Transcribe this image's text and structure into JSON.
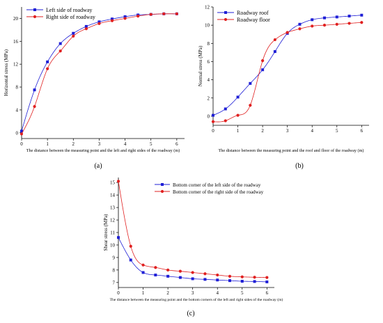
{
  "chart_data": [
    {
      "type": "line",
      "panel_label": "(a)",
      "xlabel": "The distance between the measuring point and the left and right sides of the roadway (m)",
      "ylabel": "Horizontal stress (MPa)",
      "xlim": [
        0,
        6.3
      ],
      "ylim": [
        -1,
        22
      ],
      "xticks": [
        0,
        1,
        2,
        3,
        4,
        5,
        6
      ],
      "yticks": [
        0,
        4,
        8,
        12,
        16,
        20
      ],
      "legend_position": "top-left",
      "series": [
        {
          "name": "Left side of roadway",
          "color": "#1f1fd6",
          "marker": "square",
          "x": [
            0,
            0.5,
            1,
            1.5,
            2,
            2.5,
            3,
            3.5,
            4,
            4.5,
            5,
            5.5,
            6
          ],
          "y": [
            0.3,
            7.5,
            12.4,
            15.6,
            17.4,
            18.6,
            19.4,
            19.9,
            20.3,
            20.6,
            20.7,
            20.8,
            20.8
          ]
        },
        {
          "name": "Right side of roadway",
          "color": "#e02020",
          "marker": "circle",
          "x": [
            0,
            0.5,
            1,
            1.5,
            2,
            2.5,
            3,
            3.5,
            4,
            4.5,
            5,
            5.5,
            6
          ],
          "y": [
            -0.2,
            4.6,
            11.2,
            14.3,
            16.9,
            18.2,
            19.1,
            19.6,
            20.0,
            20.4,
            20.7,
            20.8,
            20.8
          ]
        }
      ]
    },
    {
      "type": "line",
      "panel_label": "(b)",
      "xlabel": "The distance between the measuring point and the roof and floor of the roadway (m)",
      "ylabel": "Normal stress (MPa)",
      "xlim": [
        0,
        6.3
      ],
      "ylim": [
        -1,
        12
      ],
      "xticks": [
        0,
        1,
        2,
        3,
        4,
        5,
        6
      ],
      "yticks": [
        0,
        2,
        4,
        6,
        8,
        10,
        12
      ],
      "legend_position": "top-left",
      "series": [
        {
          "name": "Roadway roof",
          "color": "#1f1fd6",
          "marker": "square",
          "x": [
            0,
            0.5,
            1,
            1.5,
            2,
            2.5,
            3,
            3.5,
            4,
            4.5,
            5,
            5.5,
            6
          ],
          "y": [
            0.1,
            0.8,
            2.1,
            3.6,
            5.1,
            7.1,
            9.1,
            10.1,
            10.6,
            10.8,
            10.9,
            11.0,
            11.1
          ]
        },
        {
          "name": "Roadway floor",
          "color": "#e02020",
          "marker": "circle",
          "x": [
            0,
            0.5,
            1,
            1.5,
            2,
            2.5,
            3,
            3.5,
            4,
            4.5,
            5,
            5.5,
            6
          ],
          "y": [
            -0.6,
            -0.5,
            0.1,
            1.2,
            6.1,
            8.4,
            9.2,
            9.6,
            9.9,
            10.0,
            10.1,
            10.2,
            10.3
          ]
        }
      ]
    },
    {
      "type": "line",
      "panel_label": "(c)",
      "xlabel": "The distance between the measuring point and the bottom corners of the left and right sides of the roadway (m)",
      "ylabel": "Shear stress (MPa)",
      "xlim": [
        0,
        6.3
      ],
      "ylim": [
        6.6,
        15.4
      ],
      "xticks": [
        0,
        1,
        2,
        3,
        4,
        5,
        6
      ],
      "yticks": [
        7,
        8,
        9,
        10,
        11,
        12,
        13,
        14,
        15
      ],
      "legend_position": "top-right",
      "series": [
        {
          "name": "Bottom corner of the left side of the roadway",
          "color": "#1f1fd6",
          "marker": "square",
          "x": [
            0,
            0.5,
            1,
            1.5,
            2,
            2.5,
            3,
            3.5,
            4,
            4.5,
            5,
            5.5,
            6
          ],
          "y": [
            10.6,
            8.8,
            7.8,
            7.6,
            7.5,
            7.4,
            7.3,
            7.25,
            7.2,
            7.15,
            7.1,
            7.08,
            7.05
          ]
        },
        {
          "name": "Bottom corner of the right side of the roadway",
          "color": "#e02020",
          "marker": "circle",
          "x": [
            0,
            0.5,
            1,
            1.5,
            2,
            2.5,
            3,
            3.5,
            4,
            4.5,
            5,
            5.5,
            6
          ],
          "y": [
            15.1,
            9.9,
            8.4,
            8.2,
            8.0,
            7.9,
            7.8,
            7.7,
            7.6,
            7.5,
            7.45,
            7.42,
            7.4
          ]
        }
      ]
    }
  ]
}
